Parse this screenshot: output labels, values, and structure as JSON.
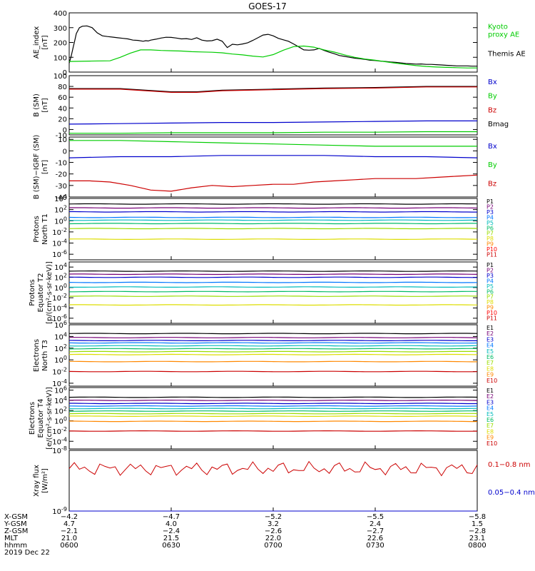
{
  "title": "GOES-17",
  "chart_data": [
    {
      "type": "line",
      "ylabel": [
        "AE_index",
        "[nT]"
      ],
      "ylim": [
        0,
        400
      ],
      "yticks": [
        "400",
        "300",
        "200",
        "100",
        "0"
      ],
      "legend": [
        {
          "name": "Kyoto\nproxy AE",
          "color": "#00cc00"
        },
        {
          "name": "Themis AE",
          "color": "#000000"
        }
      ],
      "series": [
        {
          "name": "Themis AE",
          "color": "#000000",
          "x": [
            0.0,
            0.4,
            0.8,
            1.0,
            1.4,
            2.0,
            2.6,
            3.5,
            4.5,
            5.5,
            6.5,
            7.5,
            8.5,
            9.5,
            10.5,
            11.5,
            12.5,
            13.5,
            14.5,
            15.0,
            15.5,
            16.0,
            17.0,
            18.0,
            19.0,
            20.0,
            21.0,
            22.0,
            23.0,
            24.0,
            25.0,
            26.0,
            27.0,
            28.0,
            29.0,
            30.0,
            31.0,
            32.0,
            33.0,
            34.0,
            35.0,
            36.0,
            37.0,
            38.0,
            39.0,
            40.0,
            41.0,
            42.0,
            43.0,
            44.0,
            45.0,
            46.0,
            47.0,
            48.0,
            49.0,
            50.0,
            51.0,
            52.0,
            53.0,
            54.0,
            55.0,
            56.0,
            57.0,
            58.0,
            59.0,
            60.0,
            61.0,
            62.0,
            63.0,
            64.0,
            65.0,
            66.0,
            67.0,
            68.0,
            69.0,
            70.0,
            71.0,
            72.0,
            73.0,
            74.0,
            75.0,
            76.0,
            77.0,
            78.0,
            79.0,
            80.0
          ],
          "y": [
            60,
            110,
            170,
            200,
            260,
            300,
            310,
            312,
            300,
            265,
            245,
            240,
            236,
            232,
            228,
            224,
            216,
            214,
            208,
            212,
            210,
            216,
            222,
            230,
            235,
            234,
            230,
            224,
            226,
            220,
            232,
            216,
            210,
            212,
            222,
            208,
            166,
            188,
            184,
            190,
            198,
            214,
            232,
            250,
            255,
            245,
            228,
            218,
            208,
            190,
            170,
            150,
            148,
            150,
            160,
            146,
            134,
            124,
            112,
            106,
            100,
            94,
            90,
            86,
            80,
            78,
            74,
            72,
            68,
            66,
            62,
            58,
            56,
            54,
            55,
            52,
            52,
            50,
            48,
            46,
            44,
            42,
            42,
            42,
            40,
            40
          ]
        },
        {
          "name": "Kyoto proxy AE",
          "color": "#00cc00",
          "x": [
            0,
            4,
            8,
            10,
            12,
            14,
            16,
            18,
            20,
            22,
            24,
            26,
            28,
            30,
            32,
            34,
            36,
            38,
            40,
            42,
            44,
            46,
            48,
            50,
            52,
            54,
            56,
            58,
            60,
            62,
            64,
            66,
            68,
            70,
            72,
            74,
            76,
            78,
            80
          ],
          "y": [
            72,
            74,
            76,
            100,
            128,
            150,
            150,
            146,
            144,
            142,
            138,
            136,
            134,
            130,
            122,
            116,
            108,
            102,
            118,
            148,
            172,
            176,
            168,
            150,
            135,
            116,
            100,
            88,
            80,
            70,
            60,
            52,
            44,
            38,
            34,
            32,
            30,
            28,
            28
          ]
        }
      ]
    },
    {
      "type": "line",
      "ylabel": [
        "B (SM)",
        "[nT]"
      ],
      "ylim": [
        -10,
        100
      ],
      "yticks": [
        "100",
        "80",
        "60",
        "40",
        "20",
        "0",
        "-10"
      ],
      "legend": [
        {
          "name": "Bx",
          "color": "#0000cc"
        },
        {
          "name": "By",
          "color": "#00cc00"
        },
        {
          "name": "Bz",
          "color": "#cc0000"
        },
        {
          "name": "Bmag",
          "color": "#000000"
        }
      ],
      "series": [
        {
          "name": "Bmag",
          "color": "#000000",
          "x": [
            0,
            10,
            20,
            25,
            30,
            40,
            50,
            60,
            70,
            80
          ],
          "y": [
            76,
            76,
            70,
            70,
            73,
            75,
            77,
            78,
            80,
            80
          ]
        },
        {
          "name": "Bz",
          "color": "#cc0000",
          "x": [
            0,
            10,
            20,
            25,
            30,
            40,
            50,
            60,
            70,
            80
          ],
          "y": [
            75,
            75,
            69,
            69,
            72,
            74,
            76,
            77,
            79,
            79
          ]
        },
        {
          "name": "Bx",
          "color": "#0000cc",
          "x": [
            0,
            10,
            20,
            30,
            40,
            50,
            60,
            70,
            80
          ],
          "y": [
            10,
            11,
            12,
            13,
            13,
            14,
            15,
            16,
            16
          ]
        },
        {
          "name": "By",
          "color": "#00cc00",
          "x": [
            0,
            10,
            20,
            30,
            40,
            50,
            60,
            70,
            80
          ],
          "y": [
            -7,
            -7,
            -6,
            -6,
            -6,
            -5,
            -5,
            -4,
            -4
          ]
        }
      ]
    },
    {
      "type": "line",
      "ylabel": [
        "B (SM)−IGRF (SM)",
        "[nT]"
      ],
      "ylim": [
        -40,
        12
      ],
      "yticks": [
        "10",
        "0",
        "-10",
        "-20",
        "-30",
        "-40"
      ],
      "legend": [
        {
          "name": "Bx",
          "color": "#0000cc"
        },
        {
          "name": "By",
          "color": "#00cc00"
        },
        {
          "name": "Bz",
          "color": "#cc0000"
        }
      ],
      "series": [
        {
          "name": "Bx",
          "color": "#0000cc",
          "x": [
            0,
            10,
            20,
            30,
            40,
            50,
            60,
            70,
            80
          ],
          "y": [
            -6,
            -5,
            -5,
            -4,
            -4,
            -4,
            -5,
            -5,
            -6
          ]
        },
        {
          "name": "By",
          "color": "#00cc00",
          "x": [
            0,
            10,
            20,
            30,
            40,
            50,
            60,
            70,
            80
          ],
          "y": [
            9,
            9,
            8,
            7,
            6,
            5,
            4,
            4,
            4
          ]
        },
        {
          "name": "Bz",
          "color": "#cc0000",
          "x": [
            0,
            4,
            8,
            12,
            16,
            20,
            24,
            28,
            32,
            36,
            40,
            44,
            48,
            52,
            56,
            60,
            64,
            68,
            72,
            76,
            80
          ],
          "y": [
            -26,
            -26,
            -27,
            -30,
            -34,
            -35,
            -32,
            -30,
            -31,
            -30,
            -29,
            -29,
            -27,
            -26,
            -25,
            -24,
            -24,
            -24,
            -23,
            -22,
            -21
          ]
        }
      ]
    },
    {
      "type": "line",
      "log": true,
      "ylabel": [
        "Protons",
        "North T1"
      ],
      "yticks": [
        "10^4",
        "10^2",
        "10^0",
        "10^-2",
        "10^-4",
        "10^-6"
      ],
      "ylim_exp": [
        -7,
        4
      ],
      "legend": [
        {
          "name": "P1",
          "color": "#000000"
        },
        {
          "name": "P2",
          "color": "#770077"
        },
        {
          "name": "P3",
          "color": "#0000cc"
        },
        {
          "name": "P4",
          "color": "#0077ff"
        },
        {
          "name": "P5",
          "color": "#00bbbb"
        },
        {
          "name": "P6",
          "color": "#00bb66"
        },
        {
          "name": "P7",
          "color": "#99dd00"
        },
        {
          "name": "P8",
          "color": "#dddd00"
        },
        {
          "name": "P9",
          "color": "#ff8800"
        },
        {
          "name": "P10",
          "color": "#ff0000"
        },
        {
          "name": "P11",
          "color": "#cc0000"
        }
      ],
      "levels": [
        {
          "name": "P1",
          "e": 3.0
        },
        {
          "name": "P2",
          "e": 2.3
        },
        {
          "name": "P3",
          "e": 1.6
        },
        {
          "name": "P4",
          "e": 0.6
        },
        {
          "name": "P5",
          "e": 0.1
        },
        {
          "name": "P6",
          "e": -0.5
        },
        {
          "name": "P7",
          "e": -1.4
        },
        {
          "name": "P8",
          "e": -3.3
        }
      ]
    },
    {
      "type": "line",
      "log": true,
      "ylabel": [
        "Protons",
        "Equator T2",
        "[p/(cm²-s-sr-keV)]"
      ],
      "yticks": [
        "10^4",
        "10^2",
        "10^0",
        "10^-2",
        "10^-4",
        "10^-6"
      ],
      "ylim_exp": [
        -7,
        5
      ],
      "legend": [
        {
          "name": "P1",
          "color": "#000000"
        },
        {
          "name": "P2",
          "color": "#770077"
        },
        {
          "name": "P3",
          "color": "#0000cc"
        },
        {
          "name": "P4",
          "color": "#0077ff"
        },
        {
          "name": "P5",
          "color": "#00bbbb"
        },
        {
          "name": "P6",
          "color": "#00bb66"
        },
        {
          "name": "P7",
          "color": "#99dd00"
        },
        {
          "name": "P8",
          "color": "#dddd00"
        },
        {
          "name": "P9",
          "color": "#ff8800"
        },
        {
          "name": "P10",
          "color": "#ff0000"
        },
        {
          "name": "P11",
          "color": "#cc0000"
        }
      ],
      "levels": [
        {
          "name": "P1",
          "e": 3.2
        },
        {
          "name": "P2",
          "e": 2.6
        },
        {
          "name": "P3",
          "e": 2.0
        },
        {
          "name": "P4",
          "e": 1.0
        },
        {
          "name": "P5",
          "e": 0.1
        },
        {
          "name": "P6",
          "e": -0.8
        },
        {
          "name": "P7",
          "e": -1.7
        },
        {
          "name": "P8",
          "e": -3.4
        }
      ]
    },
    {
      "type": "line",
      "log": true,
      "ylabel": [
        "Electrons",
        "North T3"
      ],
      "yticks": [
        "10^6",
        "10^4",
        "10^2",
        "10^0",
        "10^-2",
        "10^-4"
      ],
      "ylim_exp": [
        -4.5,
        6
      ],
      "legend": [
        {
          "name": "E1",
          "color": "#000000"
        },
        {
          "name": "E2",
          "color": "#770077"
        },
        {
          "name": "E3",
          "color": "#0000cc"
        },
        {
          "name": "E4",
          "color": "#0077ff"
        },
        {
          "name": "E5",
          "color": "#00bbbb"
        },
        {
          "name": "E6",
          "color": "#00bb66"
        },
        {
          "name": "E7",
          "color": "#99dd00"
        },
        {
          "name": "E8",
          "color": "#dddd00"
        },
        {
          "name": "E9",
          "color": "#ff8800"
        },
        {
          "name": "E10",
          "color": "#cc0000"
        }
      ],
      "levels": [
        {
          "name": "E1",
          "e": 4.5
        },
        {
          "name": "E2",
          "e": 3.8
        },
        {
          "name": "E3",
          "e": 3.3
        },
        {
          "name": "E4",
          "e": 2.9
        },
        {
          "name": "E5",
          "e": 2.4
        },
        {
          "name": "E6",
          "e": 1.9
        },
        {
          "name": "E7",
          "e": 1.4
        },
        {
          "name": "E8",
          "e": 0.9
        },
        {
          "name": "E9",
          "e": -0.3
        },
        {
          "name": "E10",
          "e": -2.0
        }
      ]
    },
    {
      "type": "line",
      "log": true,
      "ylabel": [
        "Electrons",
        "Equator T4",
        "[e/(cm²-s-sr-keV)]"
      ],
      "yticks": [
        "10^6",
        "10^4",
        "10^2",
        "10^0",
        "10^-2",
        "10^-4"
      ],
      "ylim_exp": [
        -5.5,
        6.5
      ],
      "legend": [
        {
          "name": "E1",
          "color": "#000000"
        },
        {
          "name": "E2",
          "color": "#770077"
        },
        {
          "name": "E3",
          "color": "#0000cc"
        },
        {
          "name": "E4",
          "color": "#0077ff"
        },
        {
          "name": "E5",
          "color": "#00bbbb"
        },
        {
          "name": "E6",
          "color": "#00bb66"
        },
        {
          "name": "E7",
          "color": "#99dd00"
        },
        {
          "name": "E8",
          "color": "#dddd00"
        },
        {
          "name": "E9",
          "color": "#ff8800"
        },
        {
          "name": "E10",
          "color": "#cc0000"
        }
      ],
      "levels": [
        {
          "name": "E1",
          "e": 4.6
        },
        {
          "name": "E2",
          "e": 4.0
        },
        {
          "name": "E3",
          "e": 3.4
        },
        {
          "name": "E4",
          "e": 2.9
        },
        {
          "name": "E5",
          "e": 2.4
        },
        {
          "name": "E6",
          "e": 1.9
        },
        {
          "name": "E7",
          "e": 1.4
        },
        {
          "name": "E8",
          "e": 0.9
        },
        {
          "name": "E9",
          "e": -0.1
        },
        {
          "name": "E10",
          "e": -2.0
        }
      ]
    },
    {
      "type": "line",
      "log": true,
      "ylabel": [
        "Xray flux",
        "[W/m²]"
      ],
      "yticks": [
        "10^-8",
        "10^-9"
      ],
      "ylim_exp": [
        -9,
        -8
      ],
      "legend": [
        {
          "name": "0.1−0.8 nm",
          "color": "#cc0000"
        },
        {
          "name": "0.05−0.4 nm",
          "color": "#0000cc"
        }
      ],
      "series": [
        {
          "name": "0.1−0.8 nm",
          "color": "#cc0000",
          "mean_e": -8.3,
          "spread": 0.12
        },
        {
          "name": "0.05−0.4 nm",
          "color": "#0000cc",
          "mean_e": -9.0,
          "spread": 0.0
        }
      ]
    }
  ],
  "xaxis": {
    "ticks": [
      {
        "x_gsm": "−4.2",
        "y_gsm": "4.7",
        "z_gsm": "−2.1",
        "mlt": "21.0",
        "hhmm": "0600"
      },
      {
        "x_gsm": "−4.7",
        "y_gsm": "4.0",
        "z_gsm": "−2.4",
        "mlt": "21.5",
        "hhmm": "0630"
      },
      {
        "x_gsm": "−5.2",
        "y_gsm": "3.2",
        "z_gsm": "−2.6",
        "mlt": "22.0",
        "hhmm": "0700"
      },
      {
        "x_gsm": "−5.5",
        "y_gsm": "2.4",
        "z_gsm": "−2.7",
        "mlt": "22.6",
        "hhmm": "0730"
      },
      {
        "x_gsm": "−5.8",
        "y_gsm": "1.5",
        "z_gsm": "−2.8",
        "mlt": "23.1",
        "hhmm": "0800"
      }
    ],
    "row_labels": [
      "X-GSM",
      "Y-GSM",
      "Z-GSM",
      "MLT",
      "hhmm"
    ],
    "date": "2019 Dec 22"
  }
}
